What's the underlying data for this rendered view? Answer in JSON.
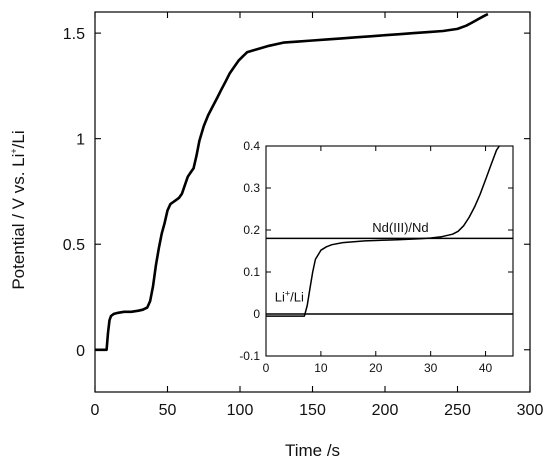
{
  "chart_data": [
    {
      "type": "line",
      "xlabel": "Time /s",
      "ylabel": {
        "pre": "Potential / V vs. Li",
        "sup": "+",
        "post": "/Li"
      },
      "xlim": [
        0,
        300
      ],
      "ylim": [
        -0.2,
        1.6
      ],
      "xticks": [
        0,
        50,
        100,
        150,
        200,
        250,
        300
      ],
      "yticks": [
        0,
        0.5,
        1,
        1.5
      ],
      "ytick_labels": [
        "0",
        "0.5",
        "1",
        "1.5"
      ],
      "grid": false,
      "series": [
        {
          "x": [
            0,
            3,
            6,
            8,
            9,
            10,
            11,
            13,
            16,
            20,
            25,
            30,
            33,
            36,
            38,
            40,
            42,
            44,
            46,
            48,
            50,
            52,
            54,
            56,
            58,
            60,
            62,
            64,
            66,
            68,
            70,
            72,
            75,
            78,
            81,
            84,
            87,
            90,
            93,
            96,
            99,
            102,
            105,
            110,
            115,
            120,
            130,
            140,
            150,
            160,
            170,
            180,
            190,
            200,
            210,
            220,
            230,
            240,
            250,
            256,
            260,
            264,
            268,
            271
          ],
          "y": [
            0.0,
            0.0,
            0.0,
            0.0,
            0.08,
            0.14,
            0.16,
            0.17,
            0.175,
            0.18,
            0.18,
            0.185,
            0.19,
            0.2,
            0.23,
            0.3,
            0.4,
            0.48,
            0.55,
            0.6,
            0.66,
            0.69,
            0.7,
            0.71,
            0.72,
            0.74,
            0.78,
            0.82,
            0.84,
            0.86,
            0.92,
            0.99,
            1.06,
            1.11,
            1.15,
            1.19,
            1.23,
            1.27,
            1.31,
            1.34,
            1.37,
            1.39,
            1.41,
            1.42,
            1.43,
            1.44,
            1.455,
            1.46,
            1.465,
            1.47,
            1.475,
            1.48,
            1.485,
            1.49,
            1.495,
            1.5,
            1.505,
            1.51,
            1.52,
            1.535,
            1.55,
            1.565,
            1.58,
            1.59
          ]
        }
      ]
    },
    {
      "type": "line",
      "role": "inset",
      "xlim": [
        0,
        45
      ],
      "ylim": [
        -0.1,
        0.4
      ],
      "xticks": [
        0,
        10,
        20,
        30,
        40
      ],
      "yticks": [
        -0.1,
        0,
        0.1,
        0.2,
        0.3,
        0.4
      ],
      "ytick_labels": [
        "-0.1",
        "0",
        "0.1",
        "0.2",
        "0.3",
        "0.4"
      ],
      "grid": false,
      "hlines": [
        0.0,
        0.18
      ],
      "annotations": [
        {
          "label": "nd",
          "text": "Nd(III)/Nd",
          "x": 24.5,
          "y": 0.195
        },
        {
          "label": "li",
          "pre": "Li",
          "sup": "+",
          "post": "/Li",
          "x": 0.5,
          "y": 0.03
        }
      ],
      "series": [
        {
          "x": [
            0,
            2,
            4,
            6,
            7,
            7.5,
            8,
            8.5,
            9,
            10,
            11,
            12,
            14,
            16,
            18,
            20,
            22,
            24,
            26,
            28,
            30,
            32,
            34,
            35,
            36,
            37,
            38,
            39,
            40,
            41,
            42,
            42.5
          ],
          "y": [
            -0.005,
            -0.005,
            -0.005,
            -0.005,
            -0.005,
            0.02,
            0.06,
            0.1,
            0.13,
            0.152,
            0.16,
            0.165,
            0.17,
            0.172,
            0.174,
            0.175,
            0.176,
            0.177,
            0.178,
            0.179,
            0.181,
            0.184,
            0.19,
            0.197,
            0.21,
            0.23,
            0.255,
            0.285,
            0.32,
            0.355,
            0.39,
            0.41
          ]
        }
      ]
    }
  ]
}
